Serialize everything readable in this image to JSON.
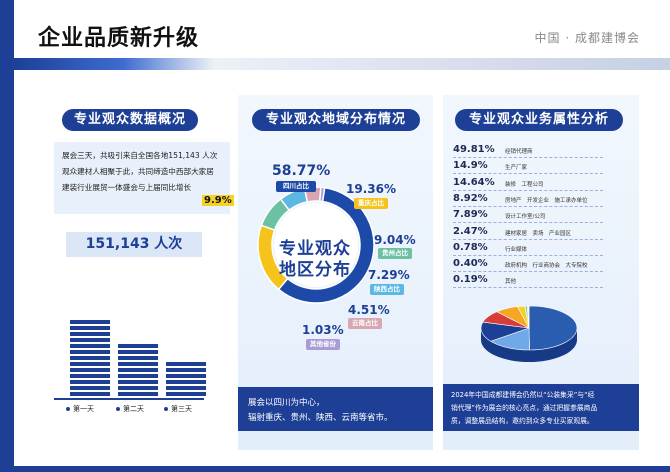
{
  "page": {
    "title": "企业品质新升级",
    "brand": "中国 · 成都建博会"
  },
  "panel1": {
    "title": "专业观众数据概况",
    "desc_lines": [
      "展会三天，共吸引来自全国各地151,143 人次",
      "观众建材人相聚于此，共同缔造中西部大家居",
      "建装行业展贸一体盛会与上届同比增长"
    ],
    "growth": "9.9%",
    "total": "151,143 人次",
    "days": [
      {
        "label": "第一天",
        "bar": 0.7
      },
      {
        "label": "第二天",
        "bar": 0.5
      },
      {
        "label": "第三天",
        "bar": 0.3
      }
    ]
  },
  "panel2": {
    "title": "专业观众地域分布情况",
    "center_line1": "专业观众",
    "center_line2": "地区分布",
    "color_main": "#1d4aa8",
    "regions": [
      {
        "pct": "58.77%",
        "label": "四川占比",
        "value": 58.77,
        "color": "#1d4aa8"
      },
      {
        "pct": "19.36%",
        "label": "重庆占比",
        "value": 19.36,
        "color": "#f5c31c"
      },
      {
        "pct": "9.04%",
        "label": "贵州占比",
        "value": 9.04,
        "color": "#6cc1a3"
      },
      {
        "pct": "7.29%",
        "label": "陕西占比",
        "value": 7.29,
        "color": "#5cb7e3"
      },
      {
        "pct": "4.51%",
        "label": "云南占比",
        "value": 4.51,
        "color": "#d9a5b1"
      },
      {
        "pct": "1.03%",
        "label": "其他省份",
        "value": 1.03,
        "color": "#a89bd6"
      }
    ],
    "footer_line1": "展会以四川为中心，",
    "footer_line2": "辐射重庆、贵州、陕西、云南等省市。"
  },
  "panel3": {
    "title": "专业观众业务属性分析",
    "items": [
      {
        "pct": "49.81%",
        "label": "经销代理商",
        "value": 49.81,
        "color": "#2a5db0"
      },
      {
        "pct": "14.9%",
        "label": "生产厂家",
        "value": 14.9,
        "color": "#6fa9e8"
      },
      {
        "pct": "14.64%",
        "label": "装修　工程公司",
        "value": 14.64,
        "color": "#1d3f96"
      },
      {
        "pct": "8.92%",
        "label": "房地产　开发企业　施工承办单位",
        "value": 8.92,
        "color": "#d93b3b"
      },
      {
        "pct": "7.89%",
        "label": "设计工作室/公司",
        "value": 7.89,
        "color": "#f5a623"
      },
      {
        "pct": "2.47%",
        "label": "建材家居　卖场　产业园区",
        "value": 2.47,
        "color": "#f5d326"
      },
      {
        "pct": "0.78%",
        "label": "行业媒体",
        "value": 0.78,
        "color": "#8fd19e"
      },
      {
        "pct": "0.40%",
        "label": "政府机构　行业商协会　大专院校",
        "value": 0.4,
        "color": "#a5c8f0"
      },
      {
        "pct": "0.19%",
        "label": "其他",
        "value": 0.19,
        "color": "#cfd8e6"
      }
    ],
    "footer_lines": [
      "2024年中国成都建博会仍然以“公装集采”与“经",
      "销代理”作为展会的核心亮点，通过把握参展商品",
      "质，调整展品结构，邀约到众多专业买家观展。"
    ]
  }
}
